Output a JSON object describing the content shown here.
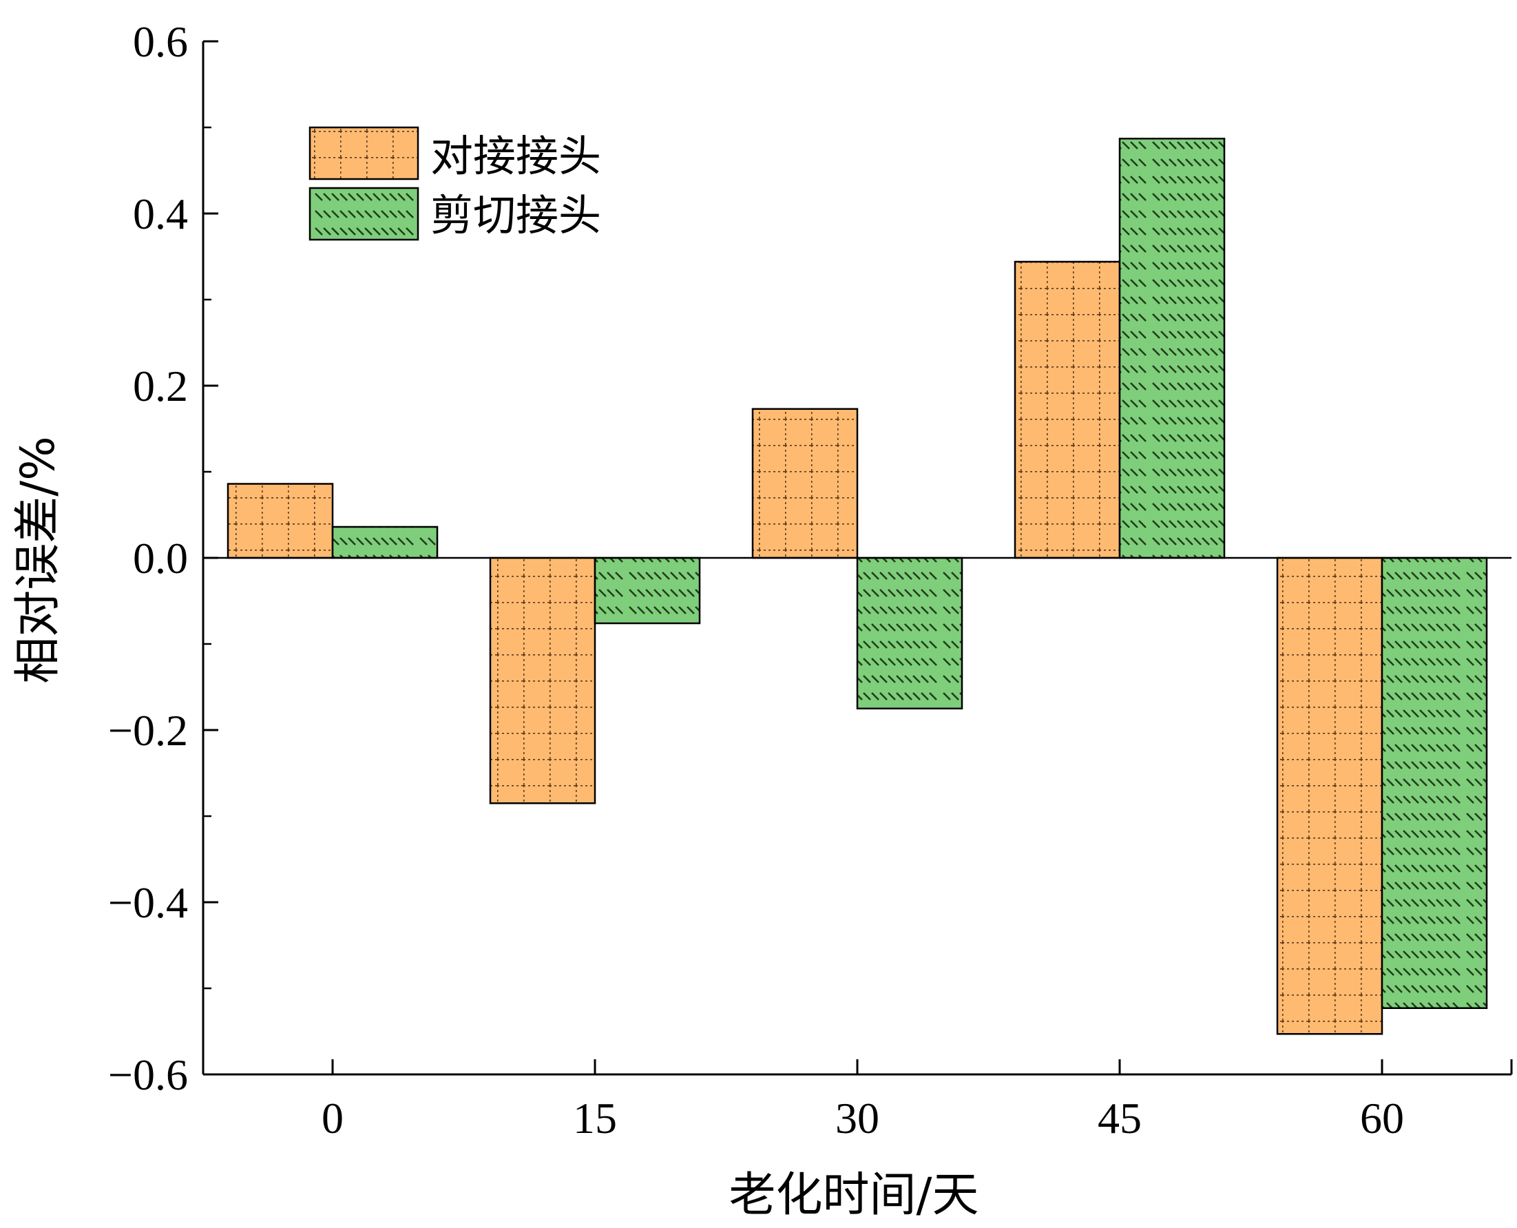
{
  "chart_data": {
    "type": "bar",
    "title": "",
    "xlabel": "老化时间/天",
    "ylabel": "相对误差/%",
    "categories": [
      "0",
      "15",
      "30",
      "45",
      "60"
    ],
    "series": [
      {
        "name": "对接接头",
        "values": [
          0.086,
          -0.285,
          0.173,
          0.344,
          -0.553
        ],
        "color": "#FFBA72",
        "pattern": "grid"
      },
      {
        "name": "剪切接头",
        "values": [
          0.036,
          -0.076,
          -0.175,
          0.487,
          -0.523
        ],
        "color": "#7FCE7B",
        "pattern": "diagonal"
      }
    ],
    "ylim": [
      -0.6,
      0.6
    ],
    "yticks": [
      "0.6",
      "0.4",
      "0.2",
      "0.0",
      "−0.2",
      "−0.4",
      "−0.6"
    ],
    "grid": false,
    "legend_position": "top-left"
  }
}
